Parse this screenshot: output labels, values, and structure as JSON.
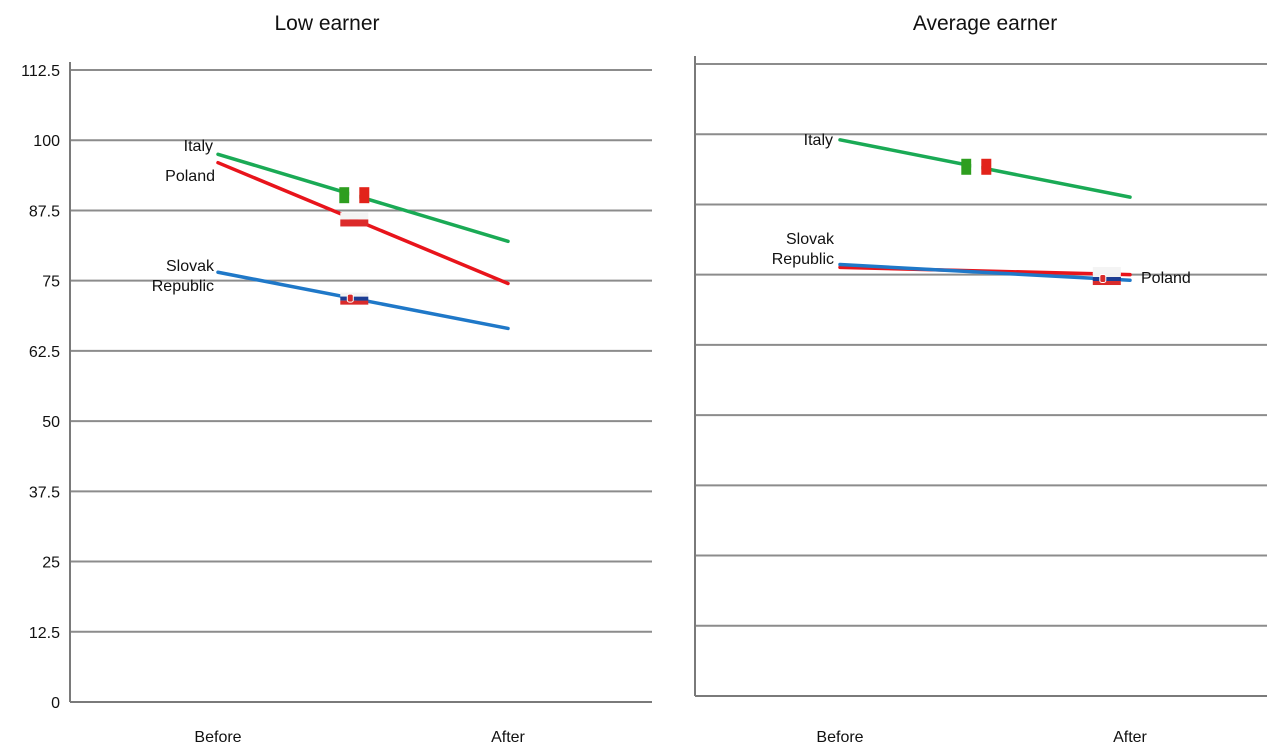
{
  "chart_data": [
    {
      "type": "line",
      "title": "Low earner",
      "categories": [
        "Before",
        "After"
      ],
      "ylim": [
        0,
        112.5
      ],
      "yticks": [
        "0",
        "12.5",
        "25",
        "37.5",
        "50",
        "62.5",
        "75",
        "87.5",
        "100",
        "112.5"
      ],
      "grid": true,
      "series": [
        {
          "name": "Italy",
          "values": [
            97.5,
            82
          ],
          "color": "#1aaa55",
          "flag": "italy-flag"
        },
        {
          "name": "Poland",
          "values": [
            96,
            74.5
          ],
          "color": "#e8141b",
          "flag": "poland-flag"
        },
        {
          "name": "Slovak Republic",
          "label_lines": [
            "Slovak",
            "Republic"
          ],
          "values": [
            76.5,
            66.5
          ],
          "color": "#1f78c8",
          "flag": "slovak-flag"
        }
      ]
    },
    {
      "type": "line",
      "title": "Average earner",
      "categories": [
        "Before",
        "After"
      ],
      "ylim": [
        0,
        112.5
      ],
      "yticks": [],
      "grid": true,
      "series": [
        {
          "name": "Italy",
          "values": [
            99,
            88.8
          ],
          "color": "#1aaa55",
          "flag": "italy-flag"
        },
        {
          "name": "Poland",
          "values": [
            76.3,
            75.0
          ],
          "color": "#e8141b",
          "flag": "poland-flag"
        },
        {
          "name": "Slovak Republic",
          "label_lines": [
            "Slovak",
            "Republic"
          ],
          "values": [
            76.8,
            74.0
          ],
          "color": "#1f78c8",
          "flag": "slovak-flag"
        }
      ]
    }
  ]
}
